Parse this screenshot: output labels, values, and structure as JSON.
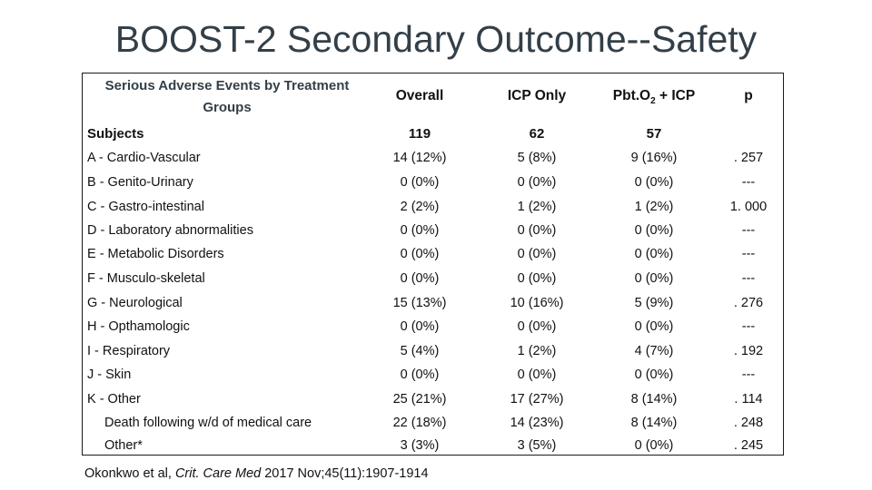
{
  "title": "BOOST-2 Secondary Outcome--Safety",
  "header": {
    "group_label": "Serious Adverse Events by Treatment Groups",
    "col1": "Overall",
    "col2": "ICP Only",
    "col3_main": "Pbt.O",
    "col3_sub": "2",
    "col3_tail": " + ICP",
    "col4": "p"
  },
  "subjects": {
    "label": "Subjects",
    "overall": "119",
    "icp": "62",
    "pbt": "57",
    "p": ""
  },
  "rows": [
    {
      "label": "A - Cardio-Vascular",
      "overall": "14 (12%)",
      "icp": "5 (8%)",
      "pbt": "9 (16%)",
      "p": ". 257"
    },
    {
      "label": "B - Genito-Urinary",
      "overall": "0 (0%)",
      "icp": "0 (0%)",
      "pbt": "0 (0%)",
      "p": "---"
    },
    {
      "label": "C - Gastro-intestinal",
      "overall": "2 (2%)",
      "icp": "1 (2%)",
      "pbt": "1 (2%)",
      "p": "1. 000"
    },
    {
      "label": "D - Laboratory abnormalities",
      "overall": "0 (0%)",
      "icp": "0 (0%)",
      "pbt": "0 (0%)",
      "p": "---"
    },
    {
      "label": "E - Metabolic Disorders",
      "overall": "0 (0%)",
      "icp": "0 (0%)",
      "pbt": "0 (0%)",
      "p": "---"
    },
    {
      "label": "F - Musculo-skeletal",
      "overall": "0 (0%)",
      "icp": "0 (0%)",
      "pbt": "0 (0%)",
      "p": "---"
    },
    {
      "label": "G - Neurological",
      "overall": "15 (13%)",
      "icp": "10 (16%)",
      "pbt": "5 (9%)",
      "p": ". 276"
    },
    {
      "label": "H - Opthamologic",
      "overall": "0 (0%)",
      "icp": "0 (0%)",
      "pbt": "0 (0%)",
      "p": "---"
    },
    {
      "label": "I - Respiratory",
      "overall": "5 (4%)",
      "icp": "1 (2%)",
      "pbt": "4 (7%)",
      "p": ". 192"
    },
    {
      "label": "J - Skin",
      "overall": "0 (0%)",
      "icp": "0 (0%)",
      "pbt": "0 (0%)",
      "p": "---"
    },
    {
      "label": "K - Other",
      "overall": "25 (21%)",
      "icp": "17 (27%)",
      "pbt": "8 (14%)",
      "p": ". 114"
    },
    {
      "label": "Death following w/d of medical care",
      "overall": "22 (18%)",
      "icp": "14 (23%)",
      "pbt": "8 (14%)",
      "p": ". 248",
      "indent": true
    },
    {
      "label": "Other*",
      "overall": "3 (3%)",
      "icp": "3 (5%)",
      "pbt": "0 (0%)",
      "p": ". 245",
      "indent": true
    }
  ],
  "citation": {
    "prefix": "Okonkwo et al, ",
    "journal": "Crit. Care Med",
    "suffix": " 2017 Nov;45(11):1907-1914"
  }
}
